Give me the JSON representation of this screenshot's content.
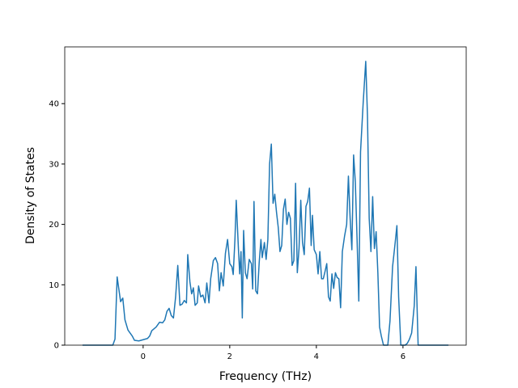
{
  "chart_data": {
    "type": "line",
    "x_label": "Frequency (THz)",
    "y_label": "Density of States",
    "color": "#1f77b4",
    "x": [
      -1.4,
      -0.7,
      -0.65,
      -0.6,
      -0.52,
      -0.47,
      -0.42,
      -0.35,
      -0.25,
      -0.2,
      -0.1,
      0,
      0.1,
      0.15,
      0.2,
      0.3,
      0.38,
      0.45,
      0.5,
      0.55,
      0.6,
      0.65,
      0.7,
      0.75,
      0.8,
      0.85,
      0.9,
      0.95,
      1.0,
      1.03,
      1.08,
      1.12,
      1.16,
      1.2,
      1.25,
      1.28,
      1.33,
      1.38,
      1.43,
      1.47,
      1.52,
      1.56,
      1.62,
      1.67,
      1.72,
      1.76,
      1.8,
      1.85,
      1.9,
      1.95,
      2.0,
      2.05,
      2.08,
      2.12,
      2.15,
      2.2,
      2.23,
      2.26,
      2.29,
      2.32,
      2.36,
      2.4,
      2.45,
      2.5,
      2.53,
      2.56,
      2.6,
      2.64,
      2.68,
      2.72,
      2.75,
      2.8,
      2.84,
      2.88,
      2.92,
      2.96,
      3.0,
      3.04,
      3.08,
      3.12,
      3.16,
      3.2,
      3.24,
      3.28,
      3.32,
      3.36,
      3.4,
      3.44,
      3.48,
      3.52,
      3.56,
      3.6,
      3.64,
      3.68,
      3.72,
      3.76,
      3.8,
      3.84,
      3.88,
      3.91,
      3.95,
      4.0,
      4.04,
      4.08,
      4.12,
      4.16,
      4.2,
      4.24,
      4.28,
      4.32,
      4.36,
      4.4,
      4.44,
      4.48,
      4.52,
      4.56,
      4.6,
      4.65,
      4.7,
      4.74,
      4.78,
      4.82,
      4.86,
      4.9,
      4.94,
      4.98,
      5.02,
      5.08,
      5.14,
      5.18,
      5.22,
      5.26,
      5.3,
      5.34,
      5.38,
      5.42,
      5.46,
      5.5,
      5.55,
      5.65,
      5.7,
      5.76,
      5.82,
      5.86,
      5.9,
      5.95,
      6.05,
      6.1,
      6.15,
      6.2,
      6.26,
      6.3,
      6.35,
      7.05
    ],
    "y": [
      0,
      0,
      1,
      11.3,
      7.2,
      7.8,
      4.2,
      2.5,
      1.5,
      0.8,
      0.7,
      0.9,
      1.1,
      1.5,
      2.4,
      3,
      3.8,
      3.7,
      4.2,
      5.6,
      6.1,
      4.9,
      4.5,
      8,
      13.2,
      6.6,
      6.8,
      7.4,
      7,
      15,
      10.5,
      8.5,
      9.5,
      6.6,
      7,
      9.8,
      8,
      8.3,
      7,
      10.3,
      7,
      11,
      14,
      14.5,
      13.5,
      9,
      12,
      9.8,
      15.2,
      17.5,
      13.5,
      13,
      11.7,
      17.5,
      24,
      16,
      11.8,
      15.5,
      4.5,
      19,
      12,
      11,
      14.2,
      13.5,
      9.3,
      23.8,
      9,
      8.5,
      13.7,
      17.5,
      14.5,
      17,
      14.2,
      17.5,
      30,
      33.3,
      23.5,
      25,
      22,
      19.5,
      15.5,
      16.5,
      22.5,
      24.2,
      20,
      22,
      21,
      13.2,
      14,
      26.8,
      12,
      16,
      24,
      17,
      15,
      23,
      23.8,
      26,
      16.5,
      21.5,
      15.8,
      15,
      11.8,
      15.5,
      11,
      11,
      12.2,
      13.5,
      8,
      7.3,
      11.8,
      9.4,
      12,
      11.2,
      11,
      6.2,
      15.5,
      18,
      20,
      28,
      21,
      15.8,
      31.5,
      27,
      17.5,
      7.3,
      32,
      40,
      47,
      38,
      21,
      15.5,
      24.6,
      16,
      18.8,
      12,
      3,
      1.5,
      0,
      0,
      4,
      13,
      17,
      19.8,
      8,
      0,
      0,
      0.3,
      1,
      2,
      6.5,
      13,
      0,
      0
    ],
    "xlim": [
      -1.81,
      7.46
    ],
    "ylim": [
      0,
      49.4
    ],
    "xticks": [
      0,
      2,
      4,
      6
    ],
    "yticks": [
      0,
      10,
      20,
      30,
      40
    ]
  }
}
